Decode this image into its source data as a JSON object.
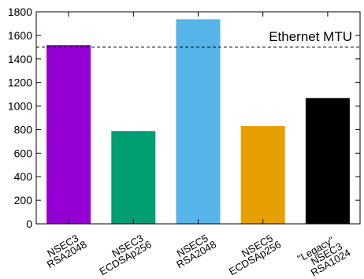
{
  "chart_data": {
    "type": "bar",
    "categories": [
      [
        "NSEC3",
        "RSA2048"
      ],
      [
        "NSEC3",
        "ECDSAp256"
      ],
      [
        "NSEC5",
        "RSA2048"
      ],
      [
        "NSEC5",
        "ECDSAp256"
      ],
      [
        "\"Legacy\"",
        "NSEC3",
        "RSA1024"
      ]
    ],
    "values": [
      1518,
      788,
      1737,
      830,
      1068
    ],
    "colors": [
      "#9400d3",
      "#009e73",
      "#56b4e9",
      "#e69f00",
      "#000000"
    ],
    "ylim": [
      0,
      1800
    ],
    "yticks": [
      0,
      200,
      400,
      600,
      800,
      1000,
      1200,
      1400,
      1600,
      1800
    ],
    "grid": false,
    "reference_line": {
      "value": 1500,
      "label": "Ethernet MTU",
      "style": "dashed"
    },
    "title": "",
    "xlabel": "",
    "ylabel": ""
  }
}
